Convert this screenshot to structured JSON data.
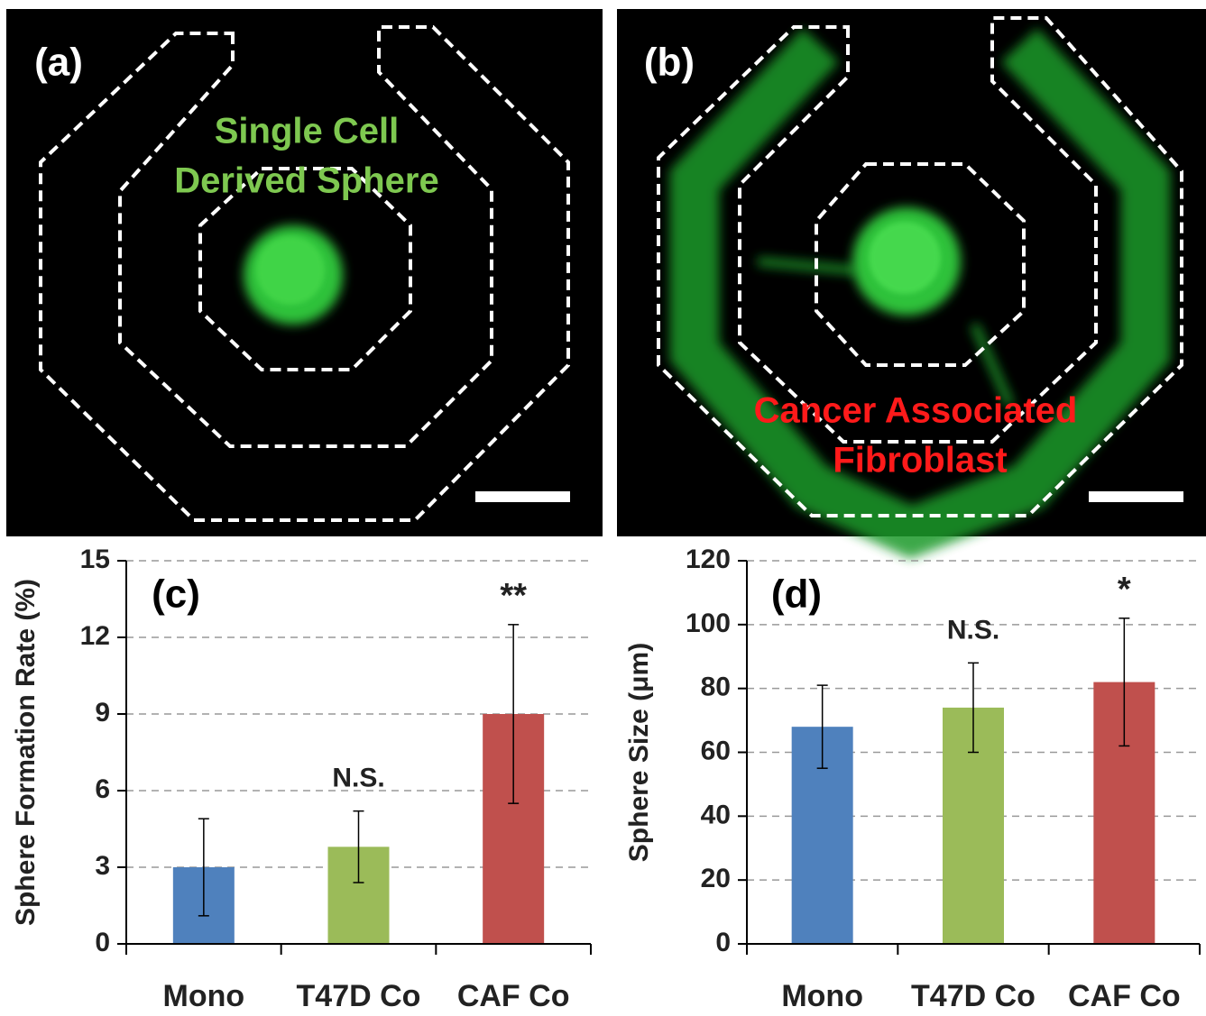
{
  "images": [
    {
      "label": "(a)",
      "annotation": [
        "Single Cell",
        "Derived Sphere"
      ]
    },
    {
      "label": "(b)",
      "annotation": [
        "Cancer Associated",
        "Fibroblast"
      ]
    }
  ],
  "chart_data": [
    {
      "type": "bar",
      "panel_label": "(c)",
      "y_label": "Sphere Formation Rate (%)",
      "categories": [
        "Mono",
        "T47D Co",
        "CAF Co"
      ],
      "values": [
        3,
        3.8,
        9
      ],
      "errors": [
        1.9,
        1.4,
        3.5
      ],
      "colors": [
        "#4f81bd",
        "#9bbb59",
        "#c0504d"
      ],
      "annotations": [
        null,
        "N.S.",
        "**"
      ],
      "ylim": [
        0,
        15
      ],
      "yticks": [
        0,
        3,
        6,
        9,
        12,
        15
      ],
      "grid": true
    },
    {
      "type": "bar",
      "panel_label": "(d)",
      "y_label": "Sphere Size (μm)",
      "categories": [
        "Mono",
        "T47D Co",
        "CAF Co"
      ],
      "values": [
        68,
        74,
        82
      ],
      "errors": [
        13,
        14,
        20
      ],
      "colors": [
        "#4f81bd",
        "#9bbb59",
        "#c0504d"
      ],
      "annotations": [
        null,
        "N.S.",
        "*"
      ],
      "ylim": [
        0,
        120
      ],
      "yticks": [
        0,
        20,
        40,
        60,
        80,
        100,
        120
      ],
      "grid": true
    }
  ]
}
